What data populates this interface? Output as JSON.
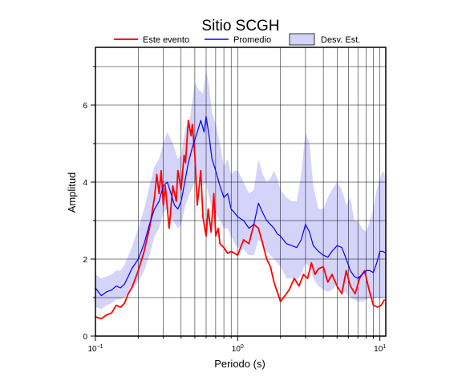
{
  "chart_data": {
    "type": "line",
    "title": "Sitio SCGH",
    "xlabel": "Periodo (s)",
    "ylabel": "Amplitud",
    "x_scale": "log",
    "xlim": [
      0.1,
      11
    ],
    "ylim": [
      0,
      7.5
    ],
    "x_ticks": [
      {
        "value": 0.1,
        "base": "10",
        "exp": "−1"
      },
      {
        "value": 1,
        "base": "10",
        "exp": "0"
      },
      {
        "value": 10,
        "base": "10",
        "exp": "1"
      }
    ],
    "y_ticks": [
      0,
      2,
      4,
      6
    ],
    "grid": true,
    "legend": {
      "placement": "top-center",
      "items": [
        {
          "label": "Este evento",
          "kind": "line",
          "color": "#ff0000"
        },
        {
          "label": "Promedio",
          "kind": "line",
          "color": "#0000ff"
        },
        {
          "label": "Desv. Est.",
          "kind": "band",
          "color": "#d4d4fa"
        }
      ]
    },
    "series": [
      {
        "name": "Este evento",
        "color": "#ff0000",
        "x": [
          0.1,
          0.11,
          0.12,
          0.13,
          0.14,
          0.15,
          0.16,
          0.17,
          0.18,
          0.2,
          0.22,
          0.24,
          0.26,
          0.27,
          0.28,
          0.29,
          0.3,
          0.31,
          0.33,
          0.35,
          0.37,
          0.38,
          0.4,
          0.42,
          0.43,
          0.45,
          0.47,
          0.48,
          0.5,
          0.52,
          0.55,
          0.57,
          0.6,
          0.62,
          0.65,
          0.68,
          0.7,
          0.73,
          0.75,
          0.8,
          0.85,
          0.9,
          1.0,
          1.1,
          1.2,
          1.3,
          1.4,
          1.5,
          1.6,
          1.7,
          1.8,
          2.0,
          2.1,
          2.3,
          2.5,
          2.7,
          2.9,
          3.1,
          3.3,
          3.5,
          3.7,
          4.0,
          4.3,
          4.6,
          5.0,
          5.4,
          5.8,
          6.2,
          6.7,
          7.2,
          7.8,
          8.4,
          9.0,
          9.6,
          10.2,
          10.8
        ],
        "y": [
          0.5,
          0.45,
          0.55,
          0.6,
          0.8,
          0.75,
          0.85,
          1.1,
          1.25,
          1.7,
          2.2,
          2.8,
          3.6,
          4.2,
          3.7,
          4.3,
          3.4,
          3.9,
          2.8,
          3.9,
          3.5,
          4.3,
          3.8,
          4.7,
          4.5,
          5.6,
          5.2,
          5.5,
          4.7,
          3.4,
          4.3,
          3.1,
          2.6,
          3.3,
          2.7,
          3.7,
          2.6,
          2.8,
          2.4,
          2.3,
          2.15,
          2.2,
          2.1,
          2.5,
          2.4,
          2.9,
          2.8,
          2.4,
          2.0,
          1.8,
          1.4,
          0.9,
          1.0,
          1.2,
          1.5,
          1.3,
          1.6,
          1.5,
          1.9,
          1.6,
          1.75,
          1.8,
          1.4,
          1.6,
          1.3,
          1.1,
          1.7,
          1.3,
          1.1,
          1.5,
          1.7,
          1.2,
          0.8,
          0.75,
          0.8,
          0.95
        ]
      },
      {
        "name": "Promedio",
        "color": "#0000ff",
        "x": [
          0.1,
          0.11,
          0.12,
          0.13,
          0.14,
          0.15,
          0.16,
          0.17,
          0.18,
          0.2,
          0.22,
          0.24,
          0.26,
          0.28,
          0.3,
          0.32,
          0.34,
          0.36,
          0.38,
          0.4,
          0.42,
          0.45,
          0.48,
          0.5,
          0.52,
          0.55,
          0.58,
          0.6,
          0.63,
          0.66,
          0.7,
          0.75,
          0.8,
          0.85,
          0.9,
          0.95,
          1.0,
          1.1,
          1.2,
          1.3,
          1.4,
          1.5,
          1.6,
          1.7,
          1.8,
          1.9,
          2.0,
          2.2,
          2.4,
          2.6,
          2.8,
          3.0,
          3.2,
          3.4,
          3.7,
          4.0,
          4.3,
          4.6,
          5.0,
          5.4,
          5.8,
          6.2,
          6.6,
          7.0,
          7.5,
          8.0,
          8.5,
          9.0,
          9.5,
          10.0,
          10.5,
          11.0
        ],
        "y": [
          1.25,
          1.05,
          1.15,
          1.2,
          1.3,
          1.25,
          1.35,
          1.55,
          1.75,
          2.0,
          2.4,
          2.9,
          3.3,
          3.5,
          3.9,
          4.0,
          3.7,
          3.4,
          3.3,
          3.5,
          3.9,
          4.5,
          4.9,
          5.1,
          5.3,
          5.6,
          5.3,
          5.7,
          5.2,
          4.6,
          4.3,
          3.9,
          3.6,
          3.7,
          3.3,
          3.2,
          3.1,
          3.0,
          2.8,
          2.9,
          3.45,
          3.2,
          3.0,
          2.9,
          2.8,
          2.65,
          2.6,
          2.4,
          2.35,
          2.3,
          2.5,
          2.9,
          2.7,
          2.35,
          2.2,
          2.1,
          2.05,
          2.2,
          2.35,
          2.3,
          2.0,
          1.7,
          1.55,
          1.5,
          1.6,
          1.7,
          1.7,
          1.65,
          1.9,
          2.2,
          2.2,
          2.15
        ]
      }
    ],
    "band": {
      "name": "Desv. Est.",
      "color": "#d4d4fa",
      "x": [
        0.1,
        0.11,
        0.12,
        0.13,
        0.14,
        0.15,
        0.16,
        0.18,
        0.2,
        0.22,
        0.24,
        0.26,
        0.28,
        0.3,
        0.32,
        0.35,
        0.38,
        0.4,
        0.43,
        0.46,
        0.5,
        0.53,
        0.57,
        0.6,
        0.63,
        0.66,
        0.7,
        0.75,
        0.8,
        0.85,
        0.9,
        0.95,
        1.0,
        1.1,
        1.2,
        1.3,
        1.4,
        1.5,
        1.6,
        1.7,
        1.8,
        1.9,
        2.0,
        2.2,
        2.4,
        2.6,
        2.8,
        3.0,
        3.2,
        3.4,
        3.7,
        4.0,
        4.3,
        4.6,
        5.0,
        5.4,
        5.8,
        6.2,
        6.6,
        7.0,
        7.5,
        8.0,
        8.5,
        9.0,
        9.5,
        10.0,
        10.5,
        11.0
      ],
      "upper": [
        1.6,
        1.5,
        1.55,
        1.6,
        1.7,
        1.7,
        1.85,
        2.3,
        2.8,
        3.3,
        3.9,
        4.4,
        4.6,
        5.0,
        5.3,
        5.0,
        4.6,
        4.7,
        5.4,
        5.6,
        6.6,
        6.4,
        6.3,
        6.9,
        6.5,
        5.8,
        5.5,
        5.0,
        4.4,
        4.6,
        4.2,
        4.3,
        4.3,
        4.0,
        3.7,
        3.8,
        4.6,
        4.2,
        4.0,
        4.1,
        4.3,
        4.1,
        3.8,
        3.6,
        3.5,
        3.5,
        4.2,
        5.3,
        5.0,
        3.9,
        3.3,
        3.3,
        3.6,
        3.8,
        4.0,
        3.8,
        3.4,
        3.6,
        3.0,
        3.0,
        2.8,
        2.7,
        3.0,
        3.3,
        3.8,
        4.1,
        4.3,
        4.1
      ],
      "lower": [
        0.75,
        0.7,
        0.8,
        0.85,
        0.95,
        0.95,
        1.0,
        1.2,
        1.4,
        1.7,
        2.1,
        2.6,
        2.8,
        3.2,
        3.3,
        3.0,
        2.8,
        2.9,
        3.4,
        3.7,
        4.0,
        4.1,
        3.9,
        4.0,
        3.6,
        3.3,
        3.2,
        3.0,
        2.8,
        2.8,
        2.6,
        2.4,
        2.3,
        2.25,
        2.1,
        2.1,
        2.5,
        2.4,
        2.2,
        2.1,
        2.0,
        1.9,
        1.8,
        1.5,
        1.5,
        1.45,
        1.6,
        1.9,
        1.8,
        1.5,
        1.3,
        1.2,
        1.15,
        1.2,
        1.35,
        1.2,
        1.1,
        1.0,
        0.95,
        0.9,
        0.9,
        0.95,
        1.0,
        0.95,
        1.0,
        1.0,
        1.0,
        1.0
      ]
    }
  }
}
